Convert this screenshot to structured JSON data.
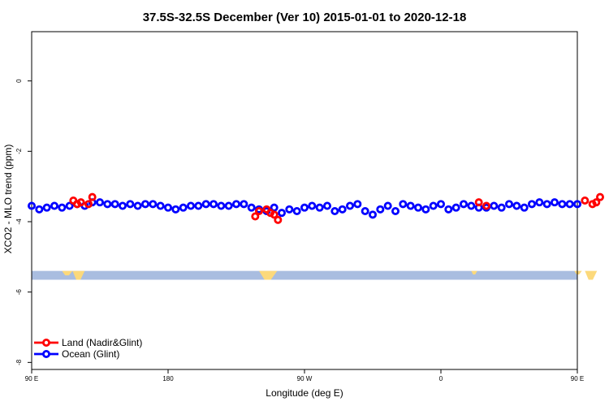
{
  "chart_data": {
    "type": "scatter",
    "title": "37.5S-32.5S December (Ver 10)   2015-01-01 to 2020-12-18",
    "xlabel": "Longitude (deg E)",
    "ylabel": "XCO2 - MLO trend (ppm)",
    "xlim": [
      90,
      450
    ],
    "ylim": [
      -8.2,
      1.4
    ],
    "x_ticks": [
      {
        "value": 90,
        "label": "90 E"
      },
      {
        "value": 180,
        "label": "180"
      },
      {
        "value": 270,
        "label": "90 W"
      },
      {
        "value": 360,
        "label": "0"
      },
      {
        "value": 450,
        "label": "90 E"
      },
      {
        "value": 540,
        "label": "180"
      }
    ],
    "y_ticks": [
      {
        "value": 0,
        "label": "0"
      },
      {
        "value": -2,
        "label": "-2"
      },
      {
        "value": -4,
        "label": "-4"
      },
      {
        "value": -6,
        "label": "-6"
      },
      {
        "value": -8,
        "label": "-8"
      }
    ],
    "x_ticks_display": [
      {
        "value": 90,
        "label": "90 E"
      },
      {
        "value": 180,
        "label": "180"
      },
      {
        "value": 270,
        "label": "90 W"
      },
      {
        "value": 360,
        "label": "0"
      },
      {
        "value": 450,
        "label": "90 E"
      }
    ],
    "legend": {
      "position": "bottom-left"
    },
    "series": [
      {
        "name": "Land (Nadir&Glint)",
        "color": "#ff0000",
        "x": [
          117.5,
          120,
          122.5,
          127.5,
          130,
          237.5,
          240,
          245,
          247.5,
          250,
          252.5,
          385,
          390,
          455,
          460,
          462.5,
          465
        ],
        "y": [
          -3.4,
          -3.5,
          -3.45,
          -3.5,
          -3.3,
          -3.85,
          -3.7,
          -3.65,
          -3.75,
          -3.8,
          -3.95,
          -3.45,
          -3.55,
          -3.4,
          -3.5,
          -3.45,
          -3.3
        ]
      },
      {
        "name": "Ocean (Glint)",
        "color": "#0000ff",
        "x": [
          90,
          95,
          100,
          105,
          110,
          115,
          120,
          125,
          130,
          135,
          140,
          145,
          150,
          155,
          160,
          165,
          170,
          175,
          180,
          185,
          190,
          195,
          200,
          205,
          210,
          215,
          220,
          225,
          230,
          235,
          240,
          245,
          250,
          255,
          260,
          265,
          270,
          275,
          280,
          285,
          290,
          295,
          300,
          305,
          310,
          315,
          320,
          325,
          330,
          335,
          340,
          345,
          350,
          355,
          360,
          365,
          370,
          375,
          380,
          385,
          390,
          395,
          400,
          405,
          410,
          415,
          420,
          425,
          430,
          435,
          440,
          445,
          450
        ],
        "y": [
          -3.55,
          -3.65,
          -3.6,
          -3.55,
          -3.6,
          -3.55,
          -3.5,
          -3.55,
          -3.45,
          -3.45,
          -3.5,
          -3.5,
          -3.55,
          -3.5,
          -3.55,
          -3.5,
          -3.5,
          -3.55,
          -3.6,
          -3.65,
          -3.6,
          -3.55,
          -3.55,
          -3.5,
          -3.5,
          -3.55,
          -3.55,
          -3.5,
          -3.5,
          -3.6,
          -3.65,
          -3.7,
          -3.6,
          -3.75,
          -3.65,
          -3.7,
          -3.6,
          -3.55,
          -3.6,
          -3.55,
          -3.7,
          -3.65,
          -3.55,
          -3.5,
          -3.7,
          -3.8,
          -3.65,
          -3.55,
          -3.7,
          -3.5,
          -3.55,
          -3.6,
          -3.65,
          -3.55,
          -3.5,
          -3.65,
          -3.6,
          -3.5,
          -3.55,
          -3.6,
          -3.6,
          -3.55,
          -3.6,
          -3.5,
          -3.55,
          -3.6,
          -3.5,
          -3.45,
          -3.5,
          -3.45,
          -3.5,
          -3.5,
          -3.5
        ]
      }
    ],
    "background_map_strip": {
      "y_range": [
        -5.4,
        -5.65
      ],
      "ocean_color": "#a9bde0",
      "land_color": "#fcd97b"
    },
    "grid": false
  }
}
